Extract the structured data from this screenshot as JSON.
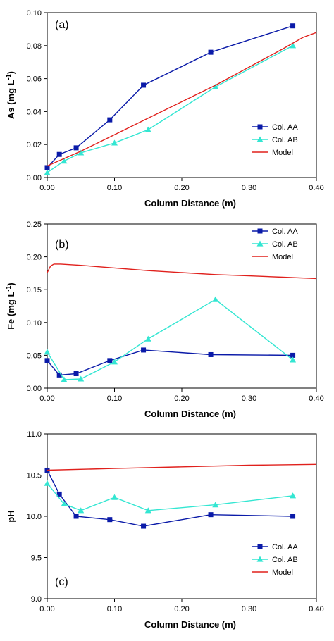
{
  "colors": {
    "col_aa": "#0A1AA8",
    "col_ab": "#33E6D2",
    "model": "#E0201C",
    "axis": "#000000"
  },
  "chart_data": [
    {
      "type": "line",
      "panel_label": "(a)",
      "xlabel": "Column Distance (m)",
      "ylabel": "As (mg L",
      "ylabel_sup": "-1",
      "ylabel_tail": ")",
      "xlim": [
        0,
        0.4
      ],
      "ylim": [
        0,
        0.1
      ],
      "xticks": [
        0,
        0.1,
        0.2,
        0.3,
        0.4
      ],
      "xtick_labels": [
        "0.00",
        "0.10",
        "0.20",
        "0.30",
        "0.40"
      ],
      "yticks": [
        0,
        0.02,
        0.04,
        0.06,
        0.08,
        0.1
      ],
      "ytick_labels": [
        "0.00",
        "0.02",
        "0.04",
        "0.06",
        "0.08",
        "0.10"
      ],
      "grid": false,
      "legend_position": "right-middle",
      "series": [
        {
          "name": "Col. AA",
          "marker": "square",
          "x": [
            0,
            0.018,
            0.043,
            0.093,
            0.143,
            0.243,
            0.365
          ],
          "y": [
            0.006,
            0.014,
            0.018,
            0.035,
            0.056,
            0.076,
            0.092
          ]
        },
        {
          "name": "Col. AB",
          "marker": "triangle",
          "x": [
            0,
            0.025,
            0.05,
            0.1,
            0.15,
            0.25,
            0.365
          ],
          "y": [
            0.003,
            0.01,
            0.015,
            0.021,
            0.029,
            0.055,
            0.08
          ]
        },
        {
          "name": "Model",
          "marker": "none",
          "x": [
            0,
            0.05,
            0.1,
            0.15,
            0.2,
            0.25,
            0.3,
            0.35,
            0.38,
            0.4
          ],
          "y": [
            0.007,
            0.016,
            0.026,
            0.036,
            0.046,
            0.056,
            0.067,
            0.078,
            0.085,
            0.088
          ]
        }
      ]
    },
    {
      "type": "line",
      "panel_label": "(b)",
      "xlabel": "Column Distance (m)",
      "ylabel": "Fe (mg L",
      "ylabel_sup": "-1",
      "ylabel_tail": ")",
      "xlim": [
        0,
        0.4
      ],
      "ylim": [
        0,
        0.25
      ],
      "xticks": [
        0,
        0.1,
        0.2,
        0.3,
        0.4
      ],
      "xtick_labels": [
        "0.00",
        "0.10",
        "0.20",
        "0.30",
        "0.40"
      ],
      "yticks": [
        0,
        0.05,
        0.1,
        0.15,
        0.2,
        0.25
      ],
      "ytick_labels": [
        "0.00",
        "0.05",
        "0.10",
        "0.15",
        "0.20",
        "0.25"
      ],
      "grid": false,
      "legend_position": "top-right",
      "series": [
        {
          "name": "Col. AA",
          "marker": "square",
          "x": [
            0,
            0.018,
            0.043,
            0.093,
            0.143,
            0.243,
            0.365
          ],
          "y": [
            0.042,
            0.02,
            0.022,
            0.042,
            0.058,
            0.051,
            0.05
          ]
        },
        {
          "name": "Col. AB",
          "marker": "triangle",
          "x": [
            0,
            0.025,
            0.05,
            0.1,
            0.15,
            0.25,
            0.365
          ],
          "y": [
            0.055,
            0.013,
            0.014,
            0.04,
            0.075,
            0.135,
            0.043
          ]
        },
        {
          "name": "Model",
          "marker": "none",
          "x": [
            0,
            0.005,
            0.01,
            0.02,
            0.05,
            0.1,
            0.15,
            0.2,
            0.25,
            0.3,
            0.35,
            0.4
          ],
          "y": [
            0.176,
            0.186,
            0.189,
            0.189,
            0.187,
            0.183,
            0.179,
            0.176,
            0.173,
            0.171,
            0.169,
            0.167
          ]
        }
      ]
    },
    {
      "type": "line",
      "panel_label": "(c)",
      "xlabel": "Column Distance (m)",
      "ylabel": "pH",
      "ylabel_sup": "",
      "ylabel_tail": "",
      "xlim": [
        0,
        0.4
      ],
      "ylim": [
        9.0,
        11.0
      ],
      "xticks": [
        0,
        0.1,
        0.2,
        0.3,
        0.4
      ],
      "xtick_labels": [
        "0.00",
        "0.10",
        "0.20",
        "0.30",
        "0.40"
      ],
      "yticks": [
        9.0,
        9.5,
        10.0,
        10.5,
        11.0
      ],
      "ytick_labels": [
        "9.0",
        "9.5",
        "10.0",
        "10.5",
        "11.0"
      ],
      "grid": false,
      "legend_position": "bottom-right",
      "series": [
        {
          "name": "Col. AA",
          "marker": "square",
          "x": [
            0,
            0.018,
            0.043,
            0.093,
            0.143,
            0.243,
            0.365
          ],
          "y": [
            10.56,
            10.27,
            10.0,
            9.96,
            9.88,
            10.02,
            10.0
          ]
        },
        {
          "name": "Col. AB",
          "marker": "triangle",
          "x": [
            0,
            0.025,
            0.05,
            0.1,
            0.15,
            0.25,
            0.365
          ],
          "y": [
            10.4,
            10.15,
            10.07,
            10.23,
            10.07,
            10.14,
            10.25
          ]
        },
        {
          "name": "Model",
          "marker": "none",
          "x": [
            0,
            0.1,
            0.2,
            0.3,
            0.4
          ],
          "y": [
            10.56,
            10.58,
            10.6,
            10.62,
            10.63
          ]
        }
      ]
    }
  ]
}
